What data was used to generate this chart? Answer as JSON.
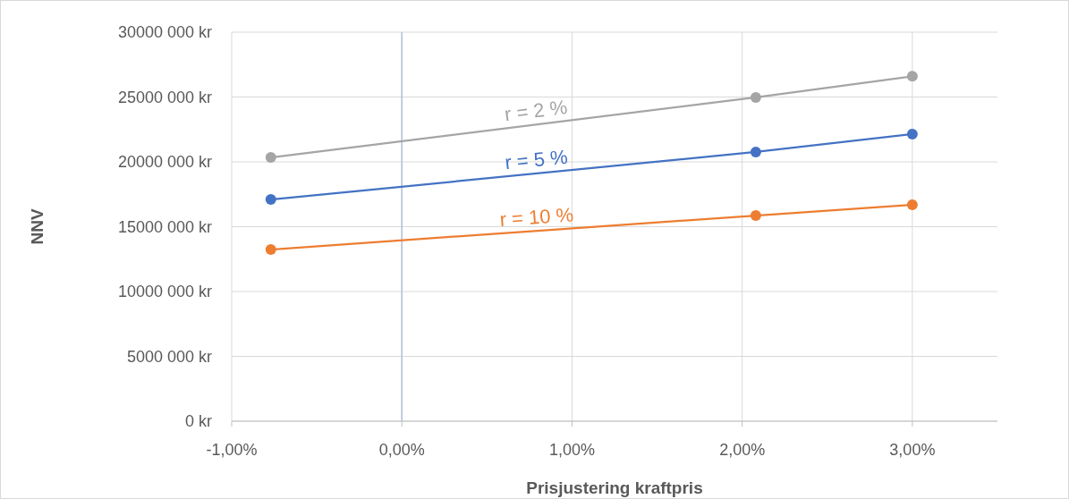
{
  "chart_data": {
    "type": "line",
    "xlabel": "Prisjustering kraftpris",
    "ylabel": "NNV",
    "xlim": [
      -1,
      3.5
    ],
    "xticks": [
      {
        "value": -1,
        "label": "-1,00%"
      },
      {
        "value": 0,
        "label": "0,00%"
      },
      {
        "value": 1,
        "label": "1,00%"
      },
      {
        "value": 2,
        "label": "2,00%"
      },
      {
        "value": 3,
        "label": "3,00%"
      }
    ],
    "ylim": [
      0,
      30000000
    ],
    "yticks": [
      {
        "value": 0,
        "label": "0 kr"
      },
      {
        "value": 5000000,
        "label": "5000 000 kr"
      },
      {
        "value": 10000000,
        "label": "10000 000 kr"
      },
      {
        "value": 15000000,
        "label": "15000 000 kr"
      },
      {
        "value": 20000000,
        "label": "20000 000 kr"
      },
      {
        "value": 25000000,
        "label": "25000 000 kr"
      },
      {
        "value": 30000000,
        "label": "30000 000 kr"
      }
    ],
    "x": [
      -0.77,
      2.08,
      3.0
    ],
    "series": [
      {
        "name": "r = 2 %",
        "color": "#a5a5a5",
        "values": [
          20340000,
          24970000,
          26600000
        ]
      },
      {
        "name": "r = 5 %",
        "color": "#4472c4",
        "values": [
          17100000,
          20760000,
          22140000
        ]
      },
      {
        "name": "r = 10 %",
        "color": "#ed7d31",
        "values": [
          13240000,
          15860000,
          16690000
        ]
      }
    ],
    "grid": true,
    "marker": "circle",
    "line_style": "solid"
  }
}
